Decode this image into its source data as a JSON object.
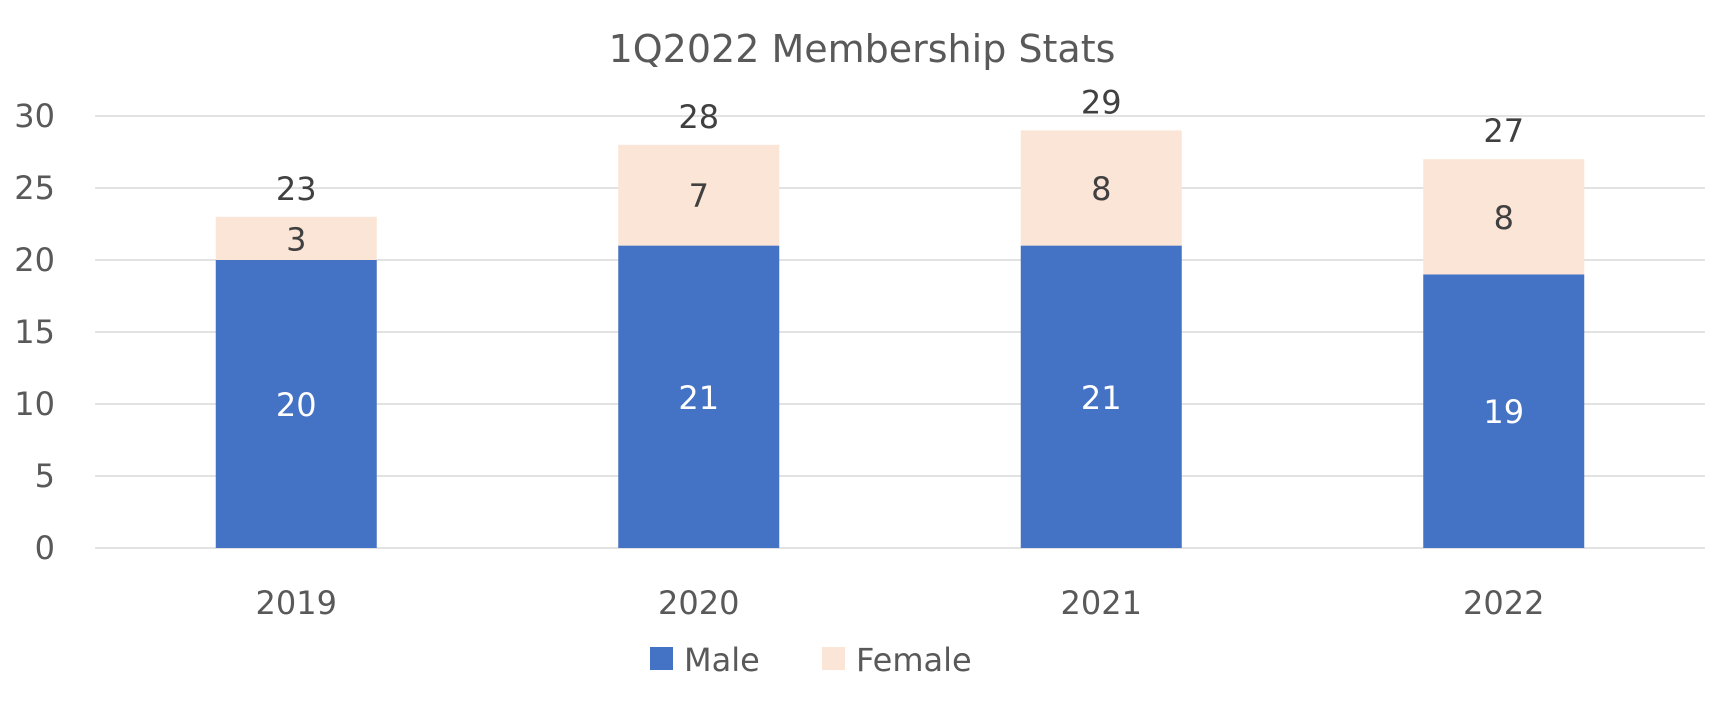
{
  "chart_data": {
    "type": "bar",
    "stacked": true,
    "title": "1Q2022 Membership Stats",
    "categories": [
      "2019",
      "2020",
      "2021",
      "2022"
    ],
    "series": [
      {
        "name": "Male",
        "values": [
          20,
          21,
          21,
          19
        ],
        "color": "#4472C4"
      },
      {
        "name": "Female",
        "values": [
          3,
          7,
          8,
          8
        ],
        "color": "#FBE5D6"
      }
    ],
    "totals": [
      23,
      28,
      29,
      27
    ],
    "ylim": [
      0,
      30
    ],
    "yticks": [
      0,
      5,
      10,
      15,
      20,
      25,
      30
    ],
    "grid": true,
    "gridColor": "#D9D9D9",
    "legend_position": "bottom"
  }
}
